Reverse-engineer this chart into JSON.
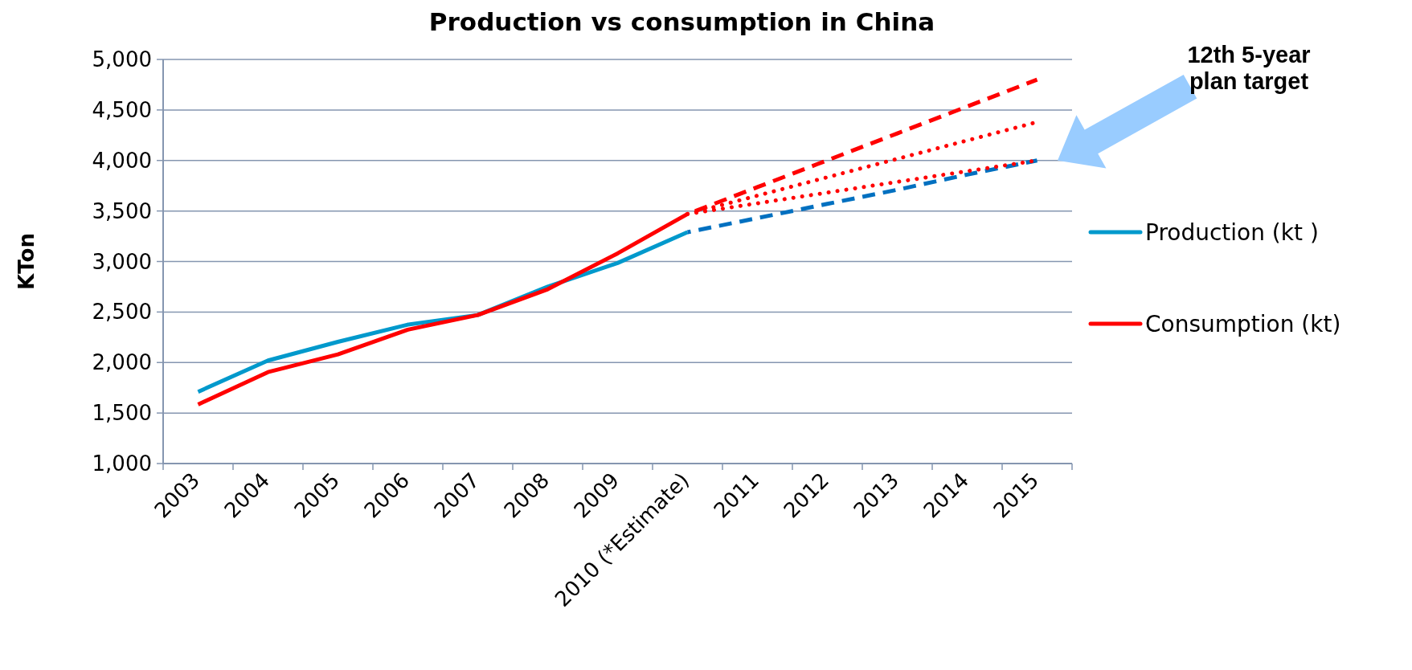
{
  "chart_data": {
    "type": "line",
    "title": "Production vs consumption in China",
    "ylabel": "KTon",
    "categories": [
      "2003",
      "2004",
      "2005",
      "2006",
      "2007",
      "2008",
      "2009",
      "2010 (*Estimate)",
      "2011",
      "2012",
      "2013",
      "2014",
      "2015"
    ],
    "series": [
      {
        "name": "Production (kt )",
        "color": "#0099cc",
        "line_style": "solid",
        "values": [
          1710,
          2020,
          2205,
          2375,
          2470,
          2750,
          2985,
          3290,
          null,
          null,
          null,
          null,
          null
        ]
      },
      {
        "name": "Consumption (kt)",
        "color": "#ff0000",
        "line_style": "solid",
        "values": [
          1585,
          1905,
          2080,
          2325,
          2470,
          2725,
          3080,
          3470,
          null,
          null,
          null,
          null,
          null
        ]
      },
      {
        "color": "#0070c0",
        "line_style": "dashed",
        "values": [
          null,
          null,
          null,
          null,
          null,
          null,
          null,
          3290,
          3430,
          3570,
          3710,
          3860,
          4000
        ]
      },
      {
        "color": "#ff0000",
        "line_style": "dashed",
        "values": [
          null,
          null,
          null,
          null,
          null,
          null,
          null,
          3470,
          3736,
          4002,
          4268,
          4534,
          4800
        ]
      },
      {
        "color": "#ff0000",
        "line_style": "dotted",
        "values": [
          null,
          null,
          null,
          null,
          null,
          null,
          null,
          3470,
          3652,
          3834,
          4016,
          4198,
          4380
        ]
      },
      {
        "color": "#ff0000",
        "line_style": "dotted",
        "values": [
          null,
          null,
          null,
          null,
          null,
          null,
          null,
          3470,
          3576,
          3682,
          3788,
          3894,
          4000
        ]
      }
    ],
    "ylim": [
      1000,
      5000
    ],
    "yticks": [
      {
        "value": 1000,
        "label": "1,000"
      },
      {
        "value": 1500,
        "label": "1,500"
      },
      {
        "value": 2000,
        "label": "2,000"
      },
      {
        "value": 2500,
        "label": "2,500"
      },
      {
        "value": 3000,
        "label": "3,000"
      },
      {
        "value": 3500,
        "label": "3,500"
      },
      {
        "value": 4000,
        "label": "4,000"
      },
      {
        "value": 4500,
        "label": "4,500"
      },
      {
        "value": 5000,
        "label": "5,000"
      }
    ],
    "grid": "y",
    "legend": "right",
    "marker": "none",
    "annotations": [
      "12th 5-year plan target"
    ]
  }
}
